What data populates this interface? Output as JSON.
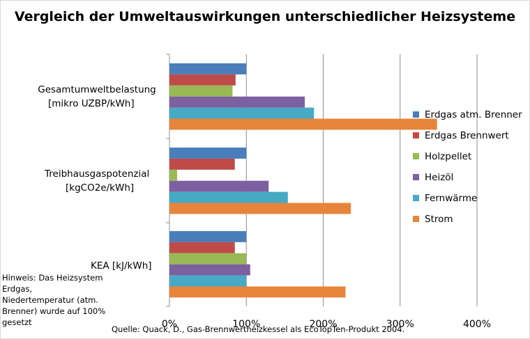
{
  "chart_data": {
    "type": "bar",
    "orientation": "horizontal",
    "title": "Vergleich der Umweltauswirkungen  unterschiedlicher Heizsysteme",
    "categories": [
      "Gesamtumweltbelastung [mikro UZBP/kWh]",
      "Treibhausgaspotenzial [kgCO2e/kWh]",
      "KEA [kJ/kWh]"
    ],
    "series": [
      {
        "name": "Erdgas atm. Brenner",
        "color": "#4a7ebb",
        "values": [
          100,
          100,
          100
        ]
      },
      {
        "name": "Erdgas Brennwert",
        "color": "#be4b48",
        "values": [
          86,
          85,
          85
        ]
      },
      {
        "name": "Holzpellet",
        "color": "#98b954",
        "values": [
          82,
          10,
          100
        ]
      },
      {
        "name": "Heizöl",
        "color": "#7d60a0",
        "values": [
          176,
          129,
          105
        ]
      },
      {
        "name": "Fernwärme",
        "color": "#46aac5",
        "values": [
          188,
          154,
          100
        ]
      },
      {
        "name": "Strom",
        "color": "#e7843c",
        "values": [
          348,
          236,
          229
        ]
      }
    ],
    "xlim": [
      0,
      400
    ],
    "x_ticks": [
      "0%",
      "100%",
      "200%",
      "300%",
      "400%"
    ],
    "grid": true,
    "legend_position": "right"
  },
  "labels": {
    "cat0_line1": "Gesamtumweltbelastung",
    "cat0_line2": "[mikro UZBP/kWh]",
    "cat1_line1": "Treibhausgaspotenzial",
    "cat1_line2": "[kgCO2e/kWh]",
    "cat2_line1": "KEA [kJ/kWh]"
  },
  "note": "Hinweis: Das Heizsystem Erdgas, Niedertemperatur (atm. Brenner) wurde auf 100% gesetzt",
  "source": "Quelle: Quack, D., Gas-Brennwertheizkessel als EcoTopTen-Produkt 2004."
}
